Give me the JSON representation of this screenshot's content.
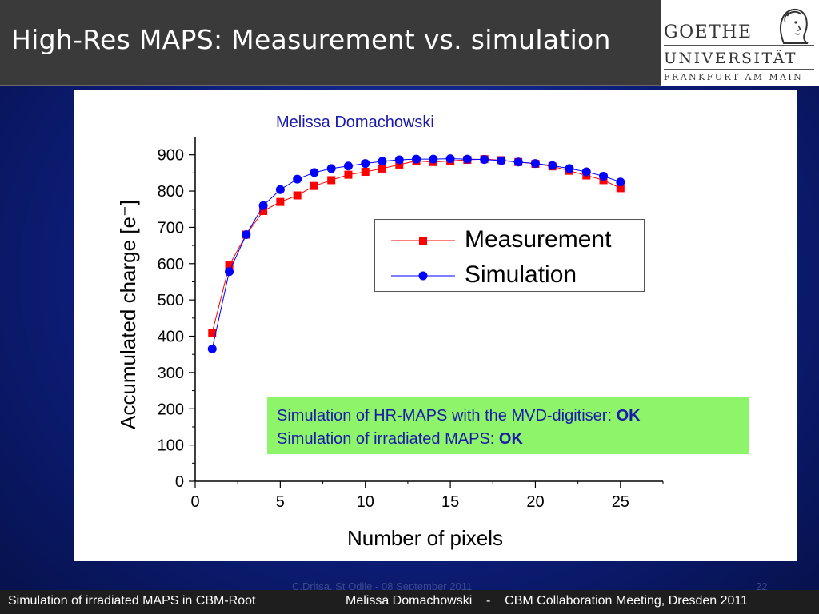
{
  "slide": {
    "title": "High-Res MAPS: Measurement vs. simulation",
    "author_label": "Melissa Domachowski",
    "note_line1_text": "Simulation of HR-MAPS with the MVD-digitiser: ",
    "note_line1_bold": "OK",
    "note_line2_text": "Simulation of irradiated MAPS: ",
    "note_line2_bold": "OK",
    "faint_text": "C.Dritsa, St Odile - 08 September 2011",
    "faint_page": "22"
  },
  "logo": {
    "line1": "GOETHE",
    "line2": "UNIVERSITÄT",
    "line3": "FRANKFURT AM MAIN"
  },
  "footer": {
    "left": "Simulation of irradiated MAPS in CBM-Root",
    "right": "Melissa Domachowski    -    CBM Collaboration Meeting, Dresden 2011"
  },
  "chart_data": {
    "type": "line",
    "xlabel": "Number of pixels",
    "ylabel": "Accumulated charge [e⁻]",
    "xlim": [
      0,
      27.5
    ],
    "ylim": [
      0,
      950
    ],
    "xticks": [
      0,
      5,
      10,
      15,
      20,
      25
    ],
    "yticks": [
      0,
      100,
      200,
      300,
      400,
      500,
      600,
      700,
      800,
      900
    ],
    "legend_position": "top-right",
    "x": [
      1,
      2,
      3,
      4,
      5,
      6,
      7,
      8,
      9,
      10,
      11,
      12,
      13,
      14,
      15,
      16,
      17,
      18,
      19,
      20,
      21,
      22,
      23,
      24,
      25
    ],
    "series": [
      {
        "name": "Measurement",
        "color": "#ff0000",
        "marker": "square",
        "values": [
          410,
          595,
          680,
          745,
          770,
          788,
          814,
          830,
          845,
          853,
          862,
          873,
          883,
          880,
          883,
          886,
          888,
          885,
          880,
          875,
          868,
          856,
          843,
          830,
          808
        ]
      },
      {
        "name": "Simulation",
        "color": "#0000ff",
        "marker": "circle",
        "values": [
          365,
          578,
          680,
          760,
          804,
          833,
          851,
          862,
          869,
          876,
          882,
          886,
          888,
          888,
          889,
          888,
          887,
          884,
          880,
          876,
          870,
          862,
          853,
          841,
          825
        ]
      }
    ]
  }
}
